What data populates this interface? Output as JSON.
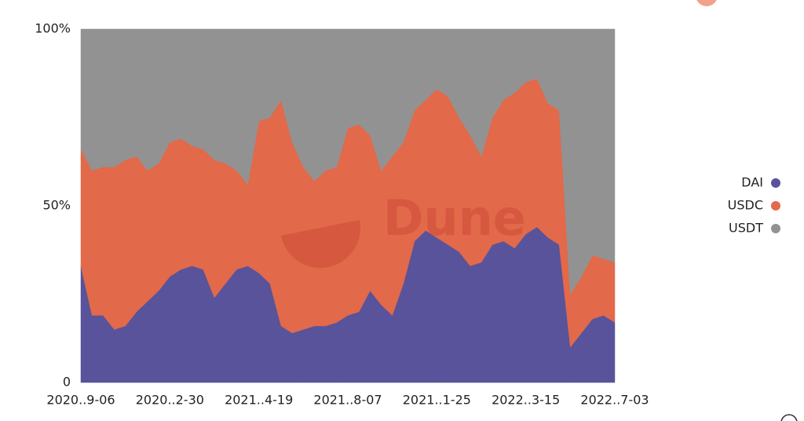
{
  "chart_data": {
    "type": "stacked-area",
    "watermark": "Dune",
    "categories": [
      "2020..9-06",
      null,
      null,
      null,
      null,
      null,
      null,
      null,
      "2020..2-30",
      null,
      null,
      null,
      null,
      null,
      null,
      null,
      "2021..4-19",
      null,
      null,
      null,
      null,
      null,
      null,
      null,
      "2021..8-07",
      null,
      null,
      null,
      null,
      null,
      null,
      null,
      "2021..1-25",
      null,
      null,
      null,
      null,
      null,
      null,
      null,
      "2022..3-15",
      null,
      null,
      null,
      null,
      null,
      null,
      null,
      "2022..7-03"
    ],
    "series": [
      {
        "name": "DAI",
        "color": "#58539a",
        "values": [
          33,
          19,
          19,
          15,
          16,
          20,
          23,
          26,
          30,
          32,
          33,
          32,
          24,
          28,
          32,
          33,
          31,
          28,
          16,
          14,
          15,
          16,
          16,
          17,
          19,
          20,
          26,
          22,
          19,
          28,
          40,
          43,
          41,
          39,
          37,
          33,
          34,
          39,
          40,
          38,
          42,
          44,
          41,
          39,
          10,
          14,
          18,
          19,
          17
        ]
      },
      {
        "name": "USDC",
        "color": "#e2694a",
        "values": [
          33,
          41,
          42,
          46,
          47,
          44,
          37,
          36,
          38,
          37,
          34,
          34,
          39,
          34,
          28,
          23,
          43,
          47,
          64,
          54,
          46,
          41,
          44,
          44,
          53,
          53,
          44,
          38,
          45,
          40,
          37,
          37,
          42,
          42,
          38,
          37,
          30,
          36,
          40,
          44,
          43,
          42,
          38,
          38,
          15,
          16,
          18,
          16,
          17
        ]
      },
      {
        "name": "USDT",
        "color": "#929292",
        "values": [
          34,
          40,
          39,
          39,
          37,
          36,
          40,
          38,
          32,
          31,
          33,
          34,
          37,
          38,
          40,
          44,
          26,
          25,
          20,
          32,
          39,
          43,
          40,
          39,
          28,
          27,
          30,
          40,
          36,
          32,
          23,
          20,
          17,
          19,
          25,
          30,
          36,
          25,
          20,
          18,
          15,
          14,
          21,
          23,
          75,
          70,
          64,
          65,
          66
        ]
      }
    ],
    "ylim": [
      0,
      100
    ],
    "yticks": [
      0,
      {
        "value": 50,
        "label": "50%"
      },
      {
        "value": 100,
        "label": "100%"
      }
    ],
    "grid": false,
    "legend": "right"
  }
}
